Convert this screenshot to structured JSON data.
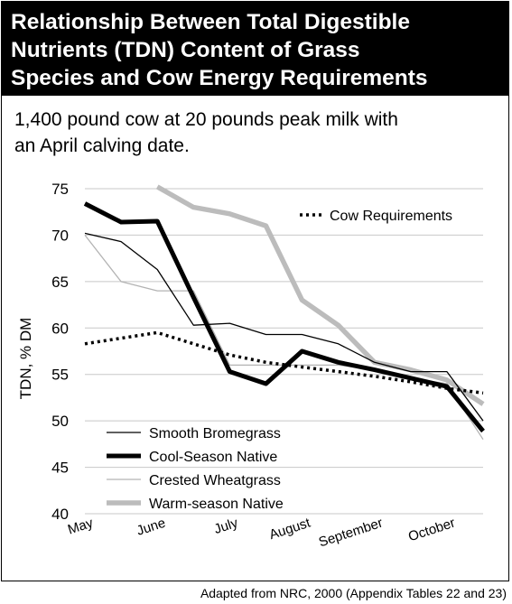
{
  "header": {
    "title": "Relationship Between Total Digestible\nNutrients (TDN) Content of Grass\nSpecies and Cow Energy Requirements",
    "subtitle": "1,400 pound cow at 20 pounds peak milk with\nan April calving date."
  },
  "footer": {
    "source": "Adapted from NRC, 2000 (Appendix Tables 22 and 23)"
  },
  "chart_data": {
    "type": "line",
    "title": "",
    "xlabel": "",
    "ylabel": "TDN, % DM",
    "ylim": [
      40,
      75
    ],
    "yticks": [
      40,
      45,
      50,
      55,
      60,
      65,
      70,
      75
    ],
    "xlim": [
      0,
      5.5
    ],
    "x_tick_labels": [
      {
        "label": "May",
        "x": 0
      },
      {
        "label": "June",
        "x": 1
      },
      {
        "label": "July",
        "x": 2
      },
      {
        "label": "August",
        "x": 3
      },
      {
        "label": "September",
        "x": 4
      },
      {
        "label": "October",
        "x": 5
      }
    ],
    "grid": true,
    "series": [
      {
        "name": "Cow Requirements",
        "style": "dotted",
        "color": "#000000",
        "x": [
          0,
          1,
          1.5,
          2,
          2.5,
          3,
          3.5,
          4,
          4.5,
          5,
          5.5
        ],
        "y": [
          58.3,
          59.5,
          58.3,
          57.1,
          56.3,
          55.8,
          55.3,
          54.8,
          54.2,
          53.5,
          53.0
        ]
      },
      {
        "name": "Smooth Bromegrass",
        "style": "thin",
        "color": "#000000",
        "x": [
          0,
          0.5,
          1,
          1.5,
          2,
          2.5,
          3,
          3.5,
          4,
          4.5,
          5,
          5.5
        ],
        "y": [
          70.2,
          69.3,
          66.3,
          60.3,
          60.5,
          59.3,
          59.3,
          58.3,
          56.3,
          55.3,
          55.3,
          50.0
        ]
      },
      {
        "name": "Cool-Season Native",
        "style": "heavy",
        "color": "#000000",
        "x": [
          0,
          0.5,
          1,
          1.5,
          2,
          2.5,
          3,
          3.5,
          4,
          4.5,
          5,
          5.5
        ],
        "y": [
          73.4,
          71.4,
          71.5,
          63.3,
          55.3,
          54.0,
          57.5,
          56.3,
          55.5,
          54.6,
          53.7,
          48.9
        ]
      },
      {
        "name": "Crested Wheatgrass",
        "style": "thin",
        "color": "#b3b3b3",
        "x": [
          0,
          0.5,
          1,
          1.5,
          2,
          2.5,
          3,
          3.5,
          4,
          4.5,
          5,
          5.5
        ],
        "y": [
          70.0,
          65.0,
          64.0,
          64.0,
          56.0,
          56.0,
          56.0,
          56.0,
          55.5,
          54.6,
          54.0,
          48.0
        ]
      },
      {
        "name": "Warm-season Native",
        "style": "heavy",
        "color": "#bcbcbc",
        "x": [
          1,
          1.5,
          2,
          2.5,
          3,
          3.5,
          4,
          4.5,
          5,
          5.5
        ],
        "y": [
          75.2,
          73.0,
          72.3,
          71.0,
          63.0,
          60.3,
          56.3,
          55.5,
          54.4,
          51.8
        ]
      }
    ],
    "legend": {
      "position": "bottom-left; Cow Requirements at top-right"
    }
  }
}
